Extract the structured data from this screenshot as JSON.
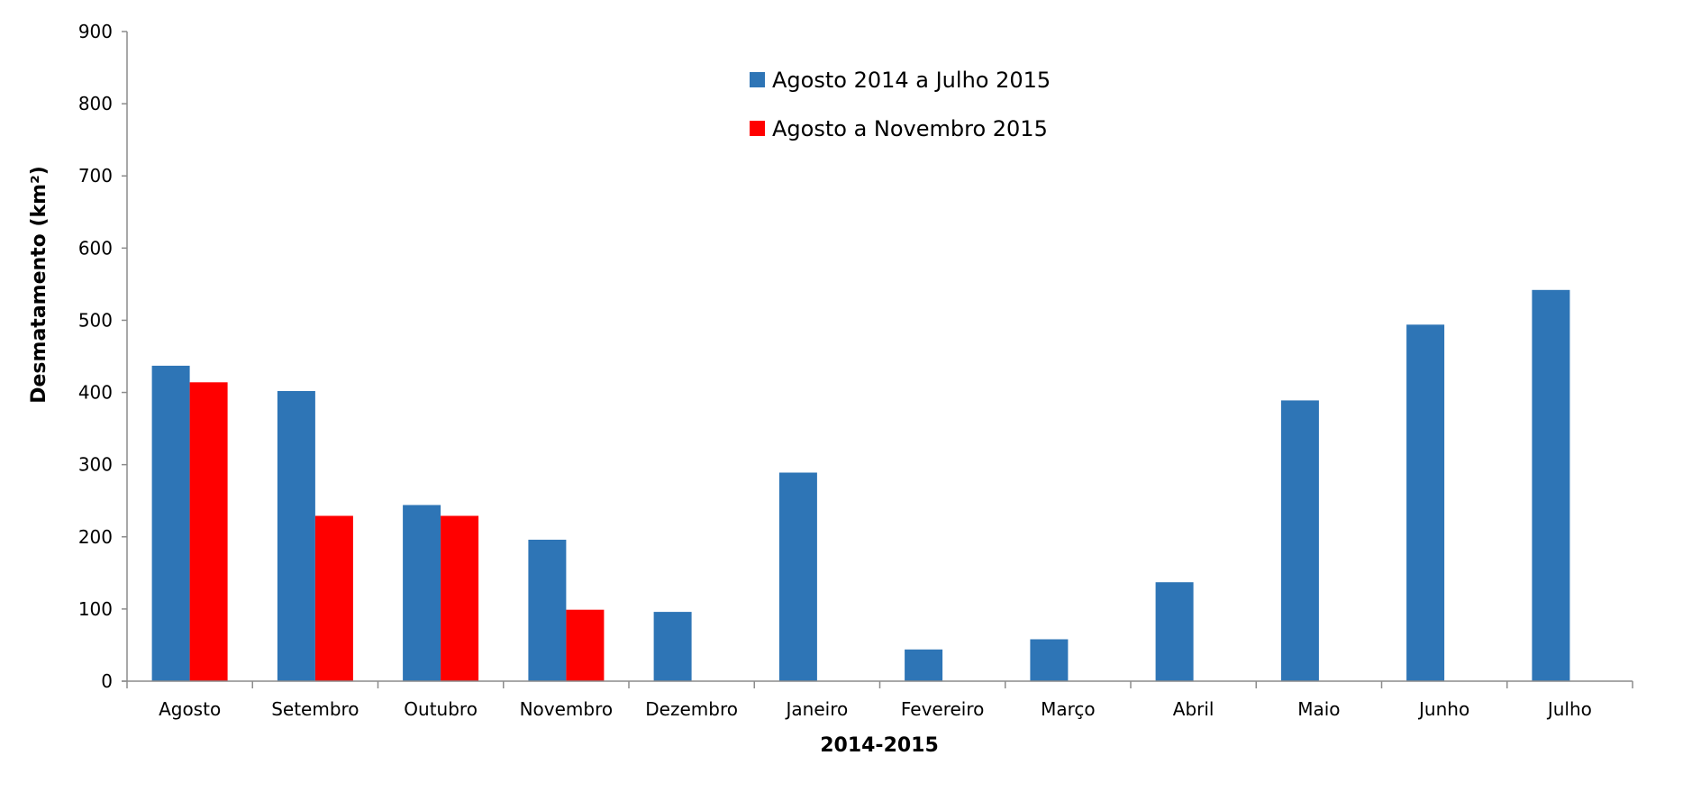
{
  "chart_data": {
    "type": "bar",
    "xlabel": "2014-2015",
    "ylabel": "Desmatamento (km²)",
    "ylim": [
      0,
      900
    ],
    "yticks": [
      0,
      100,
      200,
      300,
      400,
      500,
      600,
      700,
      800,
      900
    ],
    "grid": false,
    "legend_position": "top-center",
    "categories": [
      "Agosto",
      "Setembro",
      "Outubro",
      "Novembro",
      "Dezembro",
      "Janeiro",
      "Fevereiro",
      "Março",
      "Abril",
      "Maio",
      "Junho",
      "Julho"
    ],
    "series": [
      {
        "name": "Agosto 2014 a Julho 2015",
        "color": "#2E75B6",
        "values": [
          437,
          402,
          244,
          196,
          96,
          289,
          44,
          58,
          137,
          389,
          494,
          542
        ]
      },
      {
        "name": "Agosto a Novembro 2015",
        "color": "#FF0000",
        "values": [
          414,
          229,
          229,
          99,
          null,
          null,
          null,
          null,
          null,
          null,
          null,
          null
        ]
      }
    ]
  }
}
